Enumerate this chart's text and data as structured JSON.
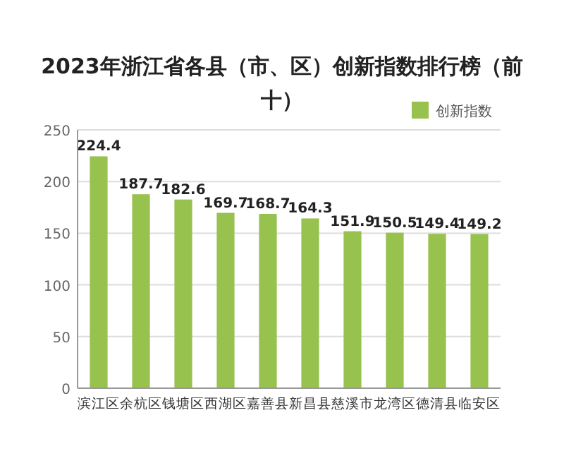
{
  "chart_data": {
    "type": "bar",
    "title": "2023年浙江省各县（市、区）创新指数排行榜（前十）",
    "categories": [
      "滨江区",
      "余杭区",
      "钱塘区",
      "西湖区",
      "嘉善县",
      "新昌县",
      "慈溪市",
      "龙湾区",
      "德清县",
      "临安区"
    ],
    "series": [
      {
        "name": "创新指数",
        "color": "#97c24e",
        "values": [
          224.4,
          187.7,
          182.6,
          169.7,
          168.7,
          164.3,
          151.9,
          150.5,
          149.4,
          149.2
        ]
      }
    ],
    "ylim": [
      0,
      250
    ],
    "yticks": [
      0,
      50,
      100,
      150,
      200,
      250
    ],
    "grid": "y",
    "legend": "top right",
    "data_labels": true
  }
}
